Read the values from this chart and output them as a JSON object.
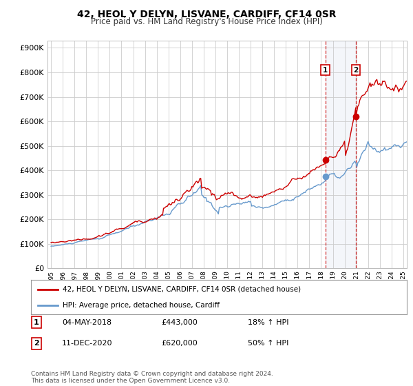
{
  "title": "42, HEOL Y DELYN, LISVANE, CARDIFF, CF14 0SR",
  "subtitle": "Price paid vs. HM Land Registry's House Price Index (HPI)",
  "ytick_labels": [
    "£0",
    "£100K",
    "£200K",
    "£300K",
    "£400K",
    "£500K",
    "£600K",
    "£700K",
    "£800K",
    "£900K"
  ],
  "yticks": [
    0,
    100000,
    200000,
    300000,
    400000,
    500000,
    600000,
    700000,
    800000,
    900000
  ],
  "ylim": [
    0,
    930000
  ],
  "legend_line1": "42, HEOL Y DELYN, LISVANE, CARDIFF, CF14 0SR (detached house)",
  "legend_line2": "HPI: Average price, detached house, Cardiff",
  "transaction1_date": "04-MAY-2018",
  "transaction1_price": "£443,000",
  "transaction1_hpi": "18% ↑ HPI",
  "transaction2_date": "11-DEC-2020",
  "transaction2_price": "£620,000",
  "transaction2_hpi": "50% ↑ HPI",
  "footer": "Contains HM Land Registry data © Crown copyright and database right 2024.\nThis data is licensed under the Open Government Licence v3.0.",
  "red_color": "#cc0000",
  "blue_color": "#6699cc",
  "vline1_x": 2018.36,
  "vline2_x": 2020.95,
  "marker1_red_y": 443000,
  "marker2_red_y": 620000,
  "marker1_hpi_y": 376000,
  "marker2_hpi_y": 413000,
  "xlim_left": 1994.7,
  "xlim_right": 2025.3,
  "background_plot": "#ffffff",
  "background_fig": "#ffffff",
  "grid_color": "#cccccc"
}
